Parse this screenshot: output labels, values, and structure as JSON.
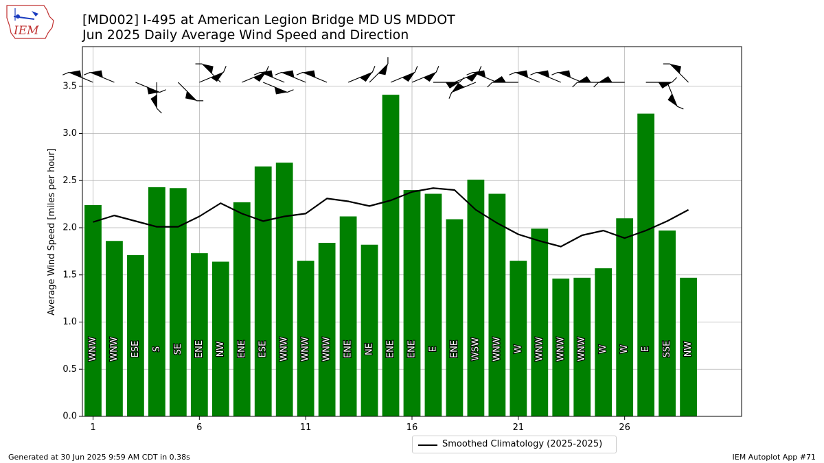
{
  "header": {
    "title_line1": "[MD002] I-495 at American Legion Bridge  MD US MDDOT",
    "title_line2": "Jun 2025 Daily Average Wind Speed and Direction"
  },
  "logo": {
    "text": "IEM"
  },
  "footer": {
    "generated": "Generated at 30 Jun 2025 9:59 AM CDT in 0.38s",
    "app": "IEM Autoplot App #71"
  },
  "legend": {
    "climatology_label": "Smoothed Climatology (2025-2025)"
  },
  "colors": {
    "bars": "#008000",
    "line": "#000000",
    "grid": "#b0b0b0"
  },
  "chart_data": {
    "type": "bar",
    "ylabel": "Average Wind Speed [miles per hour]",
    "xlabel": "",
    "xlim": [
      0.5,
      31.5
    ],
    "ylim": [
      0.0,
      3.92
    ],
    "x_ticks": [
      1,
      6,
      11,
      16,
      21,
      26
    ],
    "y_ticks": [
      0.0,
      0.5,
      1.0,
      1.5,
      2.0,
      2.5,
      3.0,
      3.5
    ],
    "y_tick_labels": [
      "0.0",
      "0.5",
      "1.0",
      "1.5",
      "2.0",
      "2.5",
      "3.0",
      "3.5"
    ],
    "grid": true,
    "legend_position": "below center",
    "days": [
      1,
      2,
      3,
      4,
      5,
      6,
      7,
      8,
      9,
      10,
      11,
      12,
      13,
      14,
      15,
      16,
      17,
      18,
      19,
      20,
      21,
      22,
      23,
      24,
      25,
      26,
      27,
      28,
      29
    ],
    "values": [
      2.24,
      1.86,
      1.71,
      2.43,
      2.42,
      1.73,
      1.64,
      2.27,
      2.65,
      2.69,
      1.65,
      1.84,
      2.12,
      1.82,
      3.41,
      2.4,
      2.36,
      2.09,
      2.51,
      2.36,
      1.65,
      1.99,
      1.46,
      1.47,
      1.57,
      2.1,
      3.21,
      1.97,
      1.47
    ],
    "directions": [
      "WNW",
      "WNW",
      "ESE",
      "S",
      "SE",
      "ENE",
      "NW",
      "ENE",
      "ESE",
      "WNW",
      "WNW",
      "WNW",
      "ENE",
      "NE",
      "ENE",
      "ENE",
      "E",
      "ENE",
      "WSW",
      "WNW",
      "W",
      "WNW",
      "WNW",
      "WNW",
      "W",
      "W",
      "E",
      "SSE",
      "NW"
    ],
    "wind_from_degrees": [
      292.5,
      292.5,
      112.5,
      180,
      135,
      67.5,
      315,
      67.5,
      112.5,
      292.5,
      292.5,
      292.5,
      67.5,
      45,
      67.5,
      67.5,
      90,
      67.5,
      247.5,
      292.5,
      270,
      292.5,
      292.5,
      292.5,
      270,
      270,
      90,
      157.5,
      315
    ],
    "series": [
      {
        "name": "Smoothed Climatology (2025-2025)",
        "type": "line",
        "values": [
          2.06,
          2.13,
          2.07,
          2.01,
          2.01,
          2.12,
          2.26,
          2.15,
          2.07,
          2.12,
          2.15,
          2.31,
          2.28,
          2.23,
          2.29,
          2.38,
          2.42,
          2.4,
          2.19,
          2.05,
          1.93,
          1.86,
          1.8,
          1.92,
          1.97,
          1.89,
          1.97,
          2.07,
          2.19
        ]
      }
    ]
  }
}
